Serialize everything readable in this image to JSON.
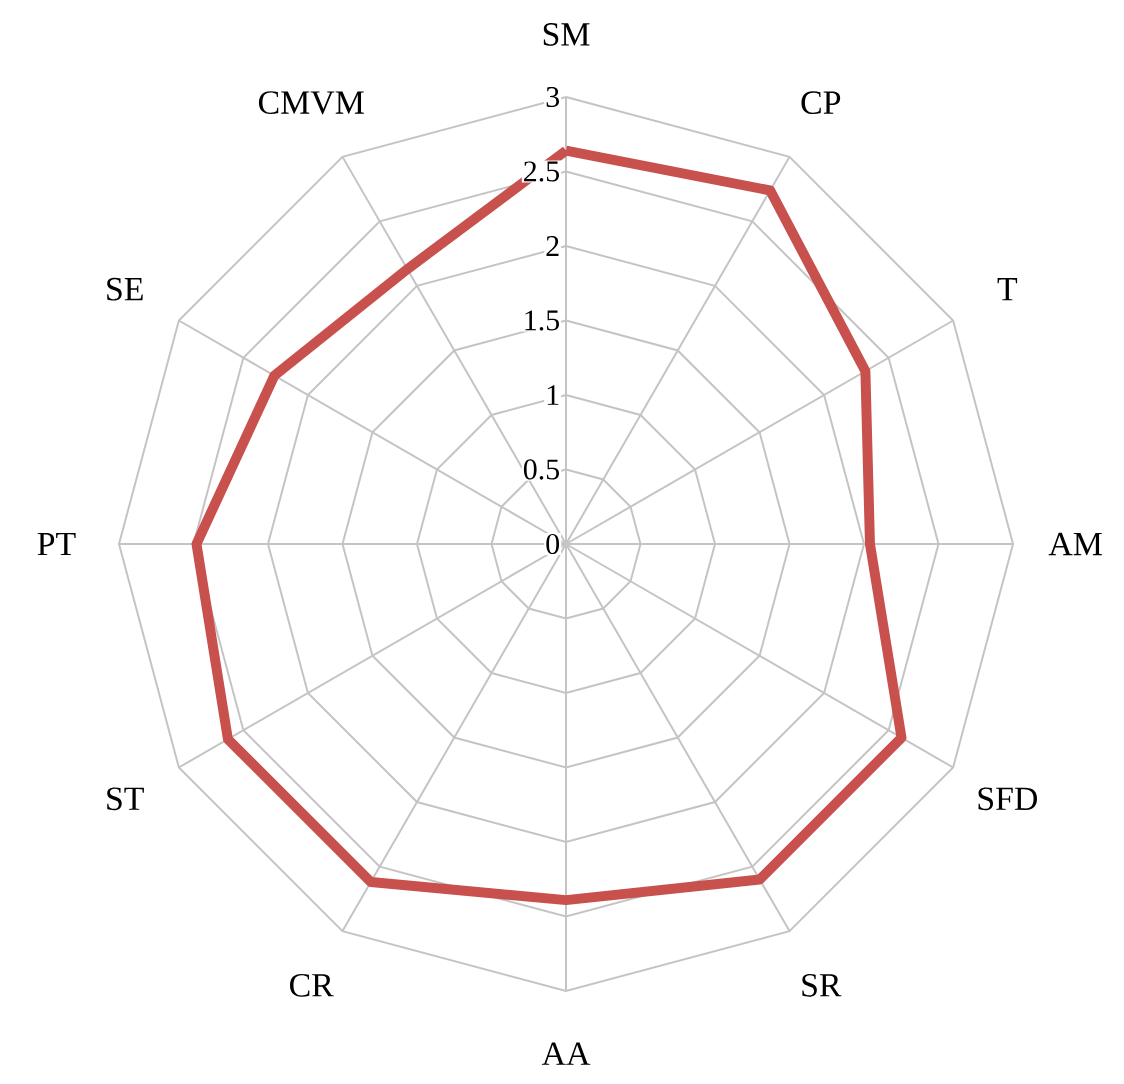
{
  "chart_data": {
    "type": "radar",
    "categories": [
      "SM",
      "CP",
      "T",
      "AM",
      "SFD",
      "SR",
      "AA",
      "CR",
      "ST",
      "PT",
      "SE",
      "CMVM"
    ],
    "series": [
      {
        "color": "#c8504d",
        "values": [
          2.64,
          2.74,
          2.32,
          2.04,
          2.6,
          2.6,
          2.39,
          2.62,
          2.62,
          2.48,
          2.26,
          2.13
        ]
      }
    ],
    "ylim": [
      0,
      3
    ],
    "yticks": [
      0,
      0.5,
      1,
      1.5,
      2,
      2.5,
      3
    ],
    "grid": true
  }
}
